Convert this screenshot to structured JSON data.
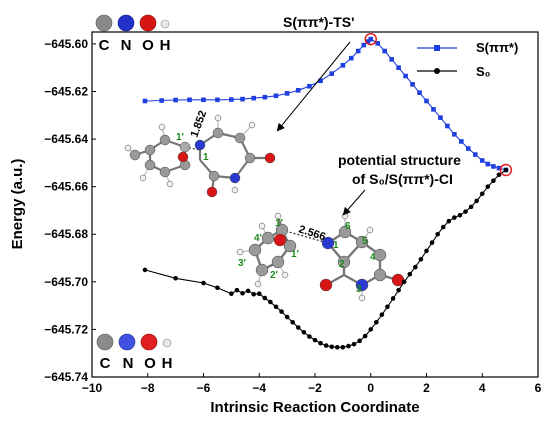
{
  "chart_data": {
    "type": "line",
    "xlabel": "Intrinsic Reaction Coordinate",
    "ylabel": "Energy (a.u.)",
    "xlim": [
      -10,
      6
    ],
    "ylim": [
      -645.74,
      -645.595
    ],
    "xticks": [
      -10,
      -8,
      -6,
      -4,
      -2,
      0,
      2,
      4,
      6
    ],
    "xtick_labels": [
      "−10",
      "−8",
      "−6",
      "−4",
      "−2",
      "0",
      "2",
      "4",
      "6"
    ],
    "yticks": [
      -645.74,
      -645.72,
      -645.7,
      -645.68,
      -645.66,
      -645.64,
      -645.62,
      -645.6
    ],
    "ytick_labels": [
      "−645.74",
      "−645.72",
      "−645.70",
      "−645.68",
      "−645.66",
      "−645.64",
      "−645.62",
      "−645.60"
    ],
    "legend": {
      "placement": "top-right"
    },
    "series": [
      {
        "name": "S(ππ*)",
        "color": "#1f3fe0",
        "marker": "square",
        "x": [
          -8.1,
          -7.5,
          -7.0,
          -6.5,
          -6.0,
          -5.5,
          -5.0,
          -4.6,
          -4.2,
          -3.8,
          -3.4,
          -3.0,
          -2.6,
          -2.2,
          -1.8,
          -1.4,
          -1.0,
          -0.7,
          -0.45,
          -0.25,
          -0.1,
          0.0,
          0.25,
          0.5,
          0.75,
          1.0,
          1.25,
          1.5,
          1.75,
          2.0,
          2.25,
          2.5,
          2.75,
          3.0,
          3.25,
          3.5,
          3.75,
          4.0,
          4.2,
          4.4,
          4.6,
          4.85
        ],
        "y": [
          -645.624,
          -645.6238,
          -645.6236,
          -645.6235,
          -645.6235,
          -645.6235,
          -645.6234,
          -645.6232,
          -645.6228,
          -645.6224,
          -645.6218,
          -645.6208,
          -645.6195,
          -645.6178,
          -645.6155,
          -645.6125,
          -645.609,
          -645.606,
          -645.603,
          -645.6005,
          -645.599,
          -645.598,
          -645.5998,
          -645.603,
          -645.6065,
          -645.61,
          -645.6135,
          -645.617,
          -645.6205,
          -645.624,
          -645.6275,
          -645.631,
          -645.6345,
          -645.638,
          -645.641,
          -645.644,
          -645.6465,
          -645.649,
          -645.6505,
          -645.6515,
          -645.6522,
          -645.653
        ]
      },
      {
        "name": "S₀",
        "color": "#000000",
        "marker": "circle",
        "x": [
          -8.1,
          -7.0,
          -6.0,
          -5.5,
          -5.0,
          -4.8,
          -4.6,
          -4.4,
          -4.2,
          -4.0,
          -3.8,
          -3.6,
          -3.4,
          -3.2,
          -3.0,
          -2.8,
          -2.6,
          -2.4,
          -2.2,
          -2.0,
          -1.8,
          -1.6,
          -1.4,
          -1.2,
          -1.0,
          -0.8,
          -0.6,
          -0.4,
          -0.2,
          0.0,
          0.2,
          0.4,
          0.6,
          0.8,
          1.0,
          1.2,
          1.4,
          1.6,
          1.8,
          2.0,
          2.2,
          2.4,
          2.6,
          2.8,
          3.0,
          3.2,
          3.4,
          3.6,
          3.8,
          4.0,
          4.2,
          4.4,
          4.6,
          4.85
        ],
        "y": [
          -645.695,
          -645.6985,
          -645.7005,
          -645.7025,
          -645.705,
          -645.7035,
          -645.7048,
          -645.7038,
          -645.7052,
          -645.705,
          -645.7068,
          -645.7085,
          -645.7105,
          -645.7125,
          -645.7148,
          -645.717,
          -645.7192,
          -645.7212,
          -645.723,
          -645.7245,
          -645.7258,
          -645.7268,
          -645.7273,
          -645.7275,
          -645.7275,
          -645.727,
          -645.7262,
          -645.7248,
          -645.7228,
          -645.72,
          -645.717,
          -645.7138,
          -645.7105,
          -645.707,
          -645.7035,
          -645.7,
          -645.6968,
          -645.6938,
          -645.6905,
          -645.687,
          -645.6835,
          -645.68,
          -645.677,
          -645.6745,
          -645.673,
          -645.672,
          -645.6705,
          -645.6685,
          -645.666,
          -645.663,
          -645.66,
          -645.6575,
          -645.655,
          -645.653
        ]
      }
    ],
    "annotations": {
      "ts_label": "S(ππ*)-TS'",
      "ci_label_line1": "potential structure",
      "ci_label_line2": "of S₀/S(ππ*)-CI",
      "ts_distance": "1.852",
      "ci_distance": "2.566",
      "ci_atom_labels": [
        "1",
        "2",
        "3",
        "4",
        "5",
        "6",
        "1'",
        "2'",
        "3'",
        "4'",
        "1'"
      ],
      "ts_atom_labels": [
        "1'",
        "1"
      ],
      "highlight_points": [
        {
          "x": 0.0,
          "y": -645.598
        },
        {
          "x": 4.85,
          "y": -645.653
        }
      ]
    },
    "atom_key": {
      "symbols": [
        "C",
        "N",
        "O",
        "H"
      ],
      "colors": [
        "#8c8c8c",
        "#3040d8",
        "#e01818",
        "#e8e8e8"
      ]
    }
  }
}
